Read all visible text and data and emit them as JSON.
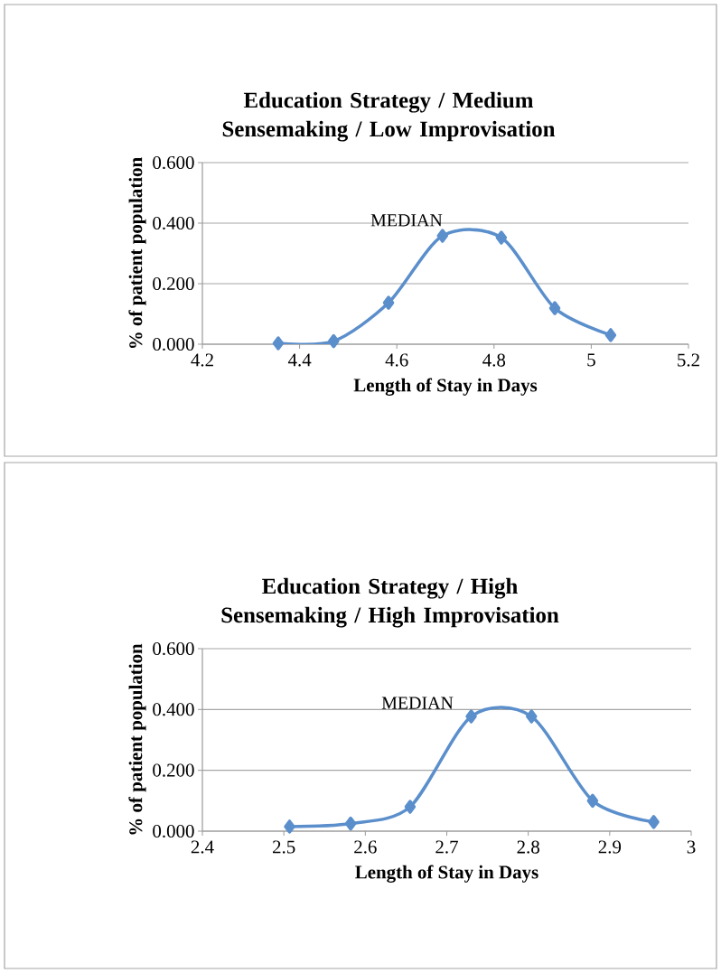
{
  "chart_data": [
    {
      "type": "line",
      "title": "Education Strategy / Medium Sensemaking / Low Improvisation",
      "xlabel": "Length of Stay in Days",
      "ylabel": "% of patient population",
      "x": [
        4.356,
        4.47,
        4.583,
        4.694,
        4.815,
        4.925,
        5.04
      ],
      "series": [
        {
          "color": "#5b8fcc",
          "values": [
            0.003,
            0.01,
            0.137,
            0.358,
            0.352,
            0.119,
            0.03
          ]
        }
      ],
      "xlim": [
        4.2,
        5.2
      ],
      "xticks": [
        4.2,
        4.4,
        4.6,
        4.8,
        {
          "value": 5,
          "label": "5"
        },
        5.2
      ],
      "ylim": [
        0,
        0.6
      ],
      "yticks": [
        {
          "value": 0,
          "label": "0.000"
        },
        {
          "value": 0.2,
          "label": "0.200"
        },
        {
          "value": 0.4,
          "label": "0.400"
        },
        {
          "value": 0.6,
          "label": "0.600"
        }
      ],
      "grid": "y",
      "marker": "diamond",
      "line_style": "solid",
      "annotations": [
        "MEDIAN"
      ]
    },
    {
      "type": "line",
      "title": "Education Strategy / High Sensemaking / High Improvisation",
      "xlabel": "Length of Stay in Days",
      "ylabel": "% of patient population",
      "x": [
        2.507,
        2.582,
        2.655,
        2.73,
        2.804,
        2.879,
        2.954
      ],
      "series": [
        {
          "color": "#5b8fcc",
          "values": [
            0.015,
            0.025,
            0.08,
            0.377,
            0.377,
            0.1,
            0.03
          ]
        }
      ],
      "xlim": [
        2.4,
        3
      ],
      "xticks": [
        2.4,
        2.5,
        2.6,
        2.7,
        2.8,
        2.9,
        {
          "value": 3,
          "label": "3"
        }
      ],
      "ylim": [
        0,
        0.6
      ],
      "yticks": [
        {
          "value": 0,
          "label": "0.000"
        },
        {
          "value": 0.2,
          "label": "0.200"
        },
        {
          "value": 0.4,
          "label": "0.400"
        },
        {
          "value": 0.6,
          "label": "0.600"
        }
      ],
      "grid": "y",
      "marker": "diamond",
      "line_style": "solid",
      "annotations": [
        "MEDIAN"
      ]
    }
  ]
}
